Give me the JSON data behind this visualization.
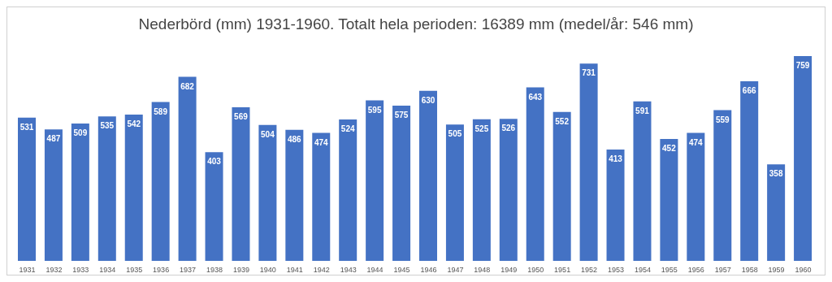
{
  "chart_data": {
    "type": "bar",
    "title": "Nederbörd (mm) 1931-1960.  Totalt hela perioden: 16389 mm (medel/år: 546 mm)",
    "categories": [
      "1931",
      "1932",
      "1933",
      "1934",
      "1935",
      "1936",
      "1937",
      "1938",
      "1939",
      "1940",
      "1941",
      "1942",
      "1943",
      "1944",
      "1945",
      "1946",
      "1947",
      "1948",
      "1949",
      "1950",
      "1951",
      "1952",
      "1953",
      "1954",
      "1955",
      "1956",
      "1957",
      "1958",
      "1959",
      "1960"
    ],
    "values": [
      531,
      487,
      509,
      535,
      542,
      589,
      682,
      403,
      569,
      504,
      486,
      474,
      524,
      595,
      575,
      630,
      505,
      525,
      526,
      643,
      552,
      731,
      413,
      591,
      452,
      474,
      559,
      666,
      358,
      759
    ],
    "color": "#4472c4",
    "data_labels": true,
    "grid": false,
    "legend": false
  }
}
